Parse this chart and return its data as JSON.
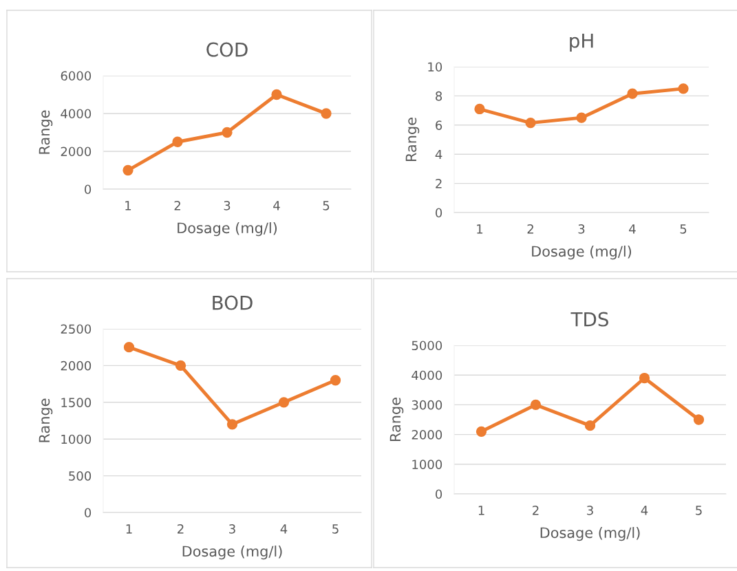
{
  "chart_data": [
    {
      "type": "line",
      "title": "COD",
      "xlabel": "Dosage (mg/l)",
      "ylabel": "Range",
      "categories": [
        "1",
        "2",
        "3",
        "4",
        "5"
      ],
      "series": [
        {
          "color": "#ed7d31",
          "values": [
            1000,
            2500,
            3000,
            5000,
            4000
          ]
        }
      ],
      "ylim": [
        0,
        6000
      ],
      "yticks": [
        0,
        2000,
        4000,
        6000
      ],
      "grid": "y",
      "marker": "circle",
      "line_style": "solid"
    },
    {
      "type": "line",
      "title": "pH",
      "xlabel": "Dosage (mg/l)",
      "ylabel": "Range",
      "categories": [
        "1",
        "2",
        "3",
        "4",
        "5"
      ],
      "series": [
        {
          "color": "#ed7d31",
          "values": [
            7.1,
            6.15,
            6.5,
            8.15,
            8.5
          ]
        }
      ],
      "ylim": [
        0,
        10
      ],
      "yticks": [
        0,
        2,
        4,
        6,
        8,
        10
      ],
      "grid": "y",
      "marker": "circle",
      "line_style": "solid"
    },
    {
      "type": "line",
      "title": "BOD",
      "xlabel": "Dosage (mg/l)",
      "ylabel": "Range",
      "categories": [
        "1",
        "2",
        "3",
        "4",
        "5"
      ],
      "series": [
        {
          "color": "#ed7d31",
          "values": [
            2250,
            2000,
            1200,
            1500,
            1800
          ]
        }
      ],
      "ylim": [
        0,
        2500
      ],
      "yticks": [
        0,
        500,
        1000,
        1500,
        2000,
        2500
      ],
      "grid": "y",
      "marker": "circle",
      "line_style": "solid"
    },
    {
      "type": "line",
      "title": "TDS",
      "xlabel": "Dosage (mg/l)",
      "ylabel": "Range",
      "categories": [
        "1",
        "2",
        "3",
        "4",
        "5"
      ],
      "series": [
        {
          "color": "#ed7d31",
          "values": [
            2100,
            3000,
            2300,
            3900,
            2500
          ]
        }
      ],
      "ylim": [
        0,
        5000
      ],
      "yticks": [
        0,
        1000,
        2000,
        3000,
        4000,
        5000
      ],
      "grid": "y",
      "marker": "circle",
      "line_style": "solid"
    }
  ]
}
